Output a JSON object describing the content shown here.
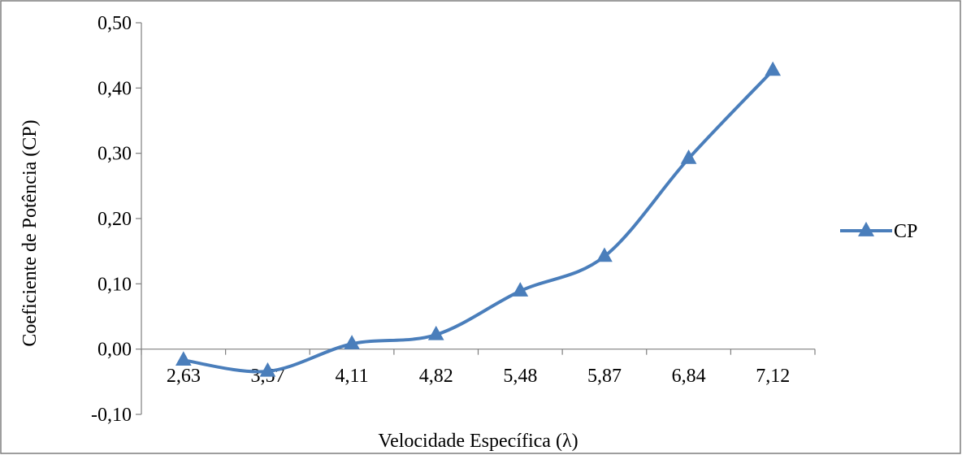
{
  "chart_data": {
    "type": "line",
    "categories": [
      "2,63",
      "3,57",
      "4,11",
      "4,82",
      "5,48",
      "5,87",
      "6,84",
      "7,12"
    ],
    "series": [
      {
        "name": "CP",
        "values": [
          -0.017,
          -0.034,
          0.008,
          0.022,
          0.089,
          0.142,
          0.292,
          0.427
        ],
        "color": "#4a7ebb",
        "marker": "triangle"
      }
    ],
    "xlabel": "Velocidade Específica (λ)",
    "ylabel": "Coeficiente de Potência (CP)",
    "ylim": [
      -0.1,
      0.5
    ],
    "yticks": [
      -0.1,
      0.0,
      0.1,
      0.2,
      0.3,
      0.4,
      0.5
    ],
    "ytick_labels": [
      "-0,10",
      "0,00",
      "0,10",
      "0,20",
      "0,30",
      "0,40",
      "0,50"
    ],
    "grid": false,
    "smooth": true,
    "legend_position": "right"
  }
}
